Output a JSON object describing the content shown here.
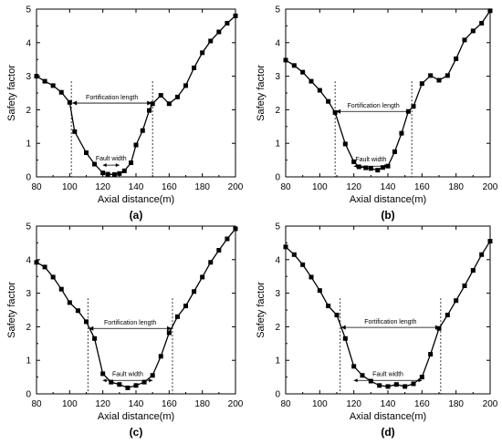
{
  "chart_data": [
    {
      "type": "line",
      "panel_label": "(a)",
      "xlabel": "Axial distance(m)",
      "ylabel": "Safety factor",
      "xlim": [
        80,
        200
      ],
      "ylim": [
        0,
        5
      ],
      "xticks": [
        80,
        100,
        120,
        140,
        160,
        180,
        200
      ],
      "yticks": [
        0,
        1,
        2,
        3,
        4,
        5
      ],
      "grid": false,
      "x": [
        80,
        85,
        90,
        95,
        100,
        103,
        110,
        115,
        120,
        123,
        127,
        130,
        133,
        137,
        140,
        144,
        148,
        150,
        155,
        160,
        165,
        170,
        175,
        180,
        185,
        190,
        195,
        200
      ],
      "y": [
        3.0,
        2.85,
        2.72,
        2.52,
        2.22,
        1.35,
        0.72,
        0.38,
        0.12,
        0.08,
        0.07,
        0.1,
        0.18,
        0.42,
        0.95,
        1.38,
        1.98,
        2.18,
        2.43,
        2.18,
        2.38,
        2.72,
        3.25,
        3.7,
        4.05,
        4.32,
        4.58,
        4.8
      ],
      "fortification": {
        "label": "Fortification length",
        "x0": 101,
        "x1": 150,
        "y": 2.2
      },
      "fault": {
        "label": "Fault width",
        "x0": 120,
        "x1": 130,
        "y": 0.35
      }
    },
    {
      "type": "line",
      "panel_label": "(b)",
      "xlabel": "Axial distance(m)",
      "ylabel": "Safety factor",
      "xlim": [
        80,
        200
      ],
      "ylim": [
        0,
        5
      ],
      "xticks": [
        80,
        100,
        120,
        140,
        160,
        180,
        200
      ],
      "yticks": [
        0,
        1,
        2,
        3,
        4,
        5
      ],
      "grid": false,
      "x": [
        80,
        85,
        90,
        95,
        100,
        105,
        109,
        115,
        120,
        123,
        127,
        130,
        134,
        137,
        140,
        144,
        148,
        152,
        155,
        160,
        165,
        170,
        175,
        180,
        185,
        190,
        195,
        200
      ],
      "y": [
        3.48,
        3.32,
        3.12,
        2.85,
        2.58,
        2.25,
        1.92,
        0.98,
        0.45,
        0.3,
        0.27,
        0.25,
        0.2,
        0.28,
        0.32,
        0.75,
        1.3,
        1.95,
        2.1,
        2.78,
        3.02,
        2.88,
        3.02,
        3.52,
        4.08,
        4.35,
        4.58,
        4.95
      ],
      "fortification": {
        "label": "Fortification length",
        "x0": 109,
        "x1": 154,
        "y": 1.95
      },
      "fault": {
        "label": "Fault width",
        "x0": 120,
        "x1": 140,
        "y": 0.32
      }
    },
    {
      "type": "line",
      "panel_label": "(c)",
      "xlabel": "Axial distance(m)",
      "ylabel": "Safety factor",
      "xlim": [
        80,
        200
      ],
      "ylim": [
        0,
        5
      ],
      "xticks": [
        80,
        100,
        120,
        140,
        160,
        180,
        200
      ],
      "yticks": [
        0,
        1,
        2,
        3,
        4,
        5
      ],
      "grid": false,
      "x": [
        80,
        85,
        90,
        95,
        100,
        105,
        110,
        115,
        120,
        125,
        130,
        135,
        140,
        145,
        150,
        155,
        160,
        165,
        170,
        175,
        180,
        185,
        190,
        195,
        200
      ],
      "y": [
        3.92,
        3.78,
        3.48,
        3.12,
        2.72,
        2.48,
        2.15,
        1.65,
        0.6,
        0.35,
        0.28,
        0.18,
        0.25,
        0.35,
        0.55,
        1.12,
        1.82,
        2.3,
        2.62,
        3.05,
        3.48,
        3.92,
        4.28,
        4.62,
        4.92
      ],
      "fortification": {
        "label": "Fortification length",
        "x0": 111,
        "x1": 162,
        "y": 1.95
      },
      "fault": {
        "label": "Fault width",
        "x0": 120,
        "x1": 150,
        "y": 0.4
      }
    },
    {
      "type": "line",
      "panel_label": "(d)",
      "xlabel": "Axial distance(m)",
      "ylabel": "Safety factor",
      "xlim": [
        80,
        200
      ],
      "ylim": [
        0,
        5
      ],
      "xticks": [
        80,
        100,
        120,
        140,
        160,
        180,
        200
      ],
      "yticks": [
        0,
        1,
        2,
        3,
        4,
        5
      ],
      "grid": false,
      "x": [
        80,
        85,
        90,
        95,
        100,
        105,
        110,
        115,
        120,
        125,
        130,
        135,
        140,
        145,
        150,
        155,
        160,
        165,
        170,
        175,
        180,
        185,
        190,
        195,
        200
      ],
      "y": [
        4.38,
        4.15,
        3.85,
        3.48,
        3.08,
        2.62,
        2.35,
        1.65,
        0.82,
        0.55,
        0.38,
        0.25,
        0.22,
        0.28,
        0.22,
        0.3,
        0.5,
        1.18,
        1.95,
        2.35,
        2.78,
        3.22,
        3.68,
        4.15,
        4.55
      ],
      "fortification": {
        "label": "Fortification length",
        "x0": 112,
        "x1": 171,
        "y": 1.98
      },
      "fault": {
        "label": "Fault width",
        "x0": 120,
        "x1": 160,
        "y": 0.4
      }
    }
  ]
}
